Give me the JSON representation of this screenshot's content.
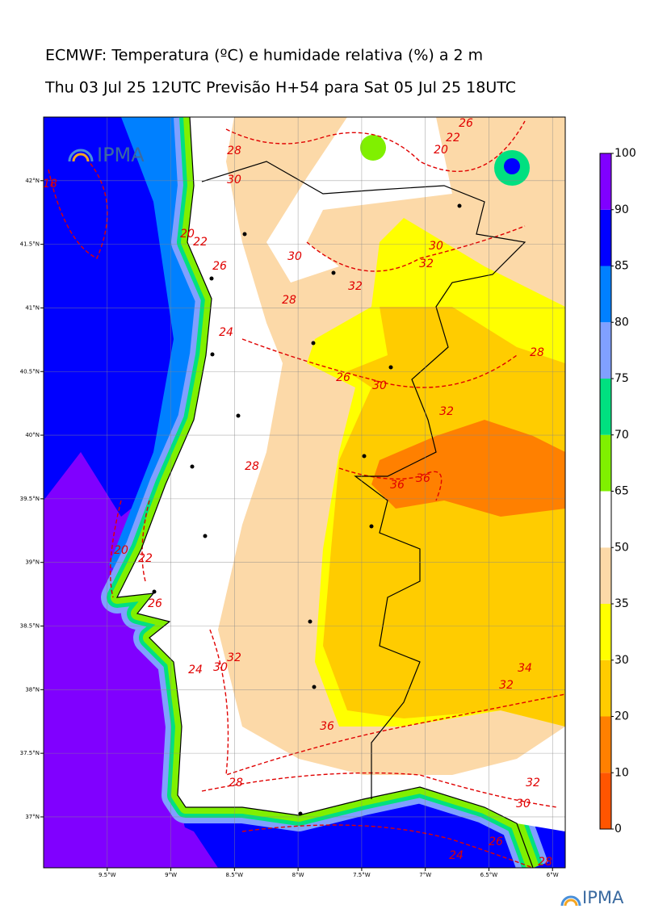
{
  "header": {
    "title": "ECMWF: Temperatura (ºC) e humidade relativa (%) a 2 m",
    "subtitle": "Thu 03 Jul 25 12UTC Previsão H+54 para Sat 05 Jul 25 18UTC"
  },
  "map": {
    "lon_range": [
      -10,
      -5.9
    ],
    "lat_range": [
      36.6,
      42.5
    ],
    "lon_ticks": [
      {
        "value": -9.5,
        "label": "9.5°W"
      },
      {
        "value": -9,
        "label": "9°W"
      },
      {
        "value": -8.5,
        "label": "8.5°W"
      },
      {
        "value": -8,
        "label": "8°W"
      },
      {
        "value": -7.5,
        "label": "7.5°W"
      },
      {
        "value": -7,
        "label": "7°W"
      },
      {
        "value": -6.5,
        "label": "6.5°W"
      },
      {
        "value": -6,
        "label": "6°W"
      }
    ],
    "lat_ticks": [
      {
        "value": 42,
        "label": "42°N"
      },
      {
        "value": 41.5,
        "label": "41.5°N"
      },
      {
        "value": 41,
        "label": "41°N"
      },
      {
        "value": 40.5,
        "label": "40.5°N"
      },
      {
        "value": 40,
        "label": "40°N"
      },
      {
        "value": 39.5,
        "label": "39.5°N"
      },
      {
        "value": 39,
        "label": "39°N"
      },
      {
        "value": 38.5,
        "label": "38.5°N"
      },
      {
        "value": 38,
        "label": "38°N"
      },
      {
        "value": 37.5,
        "label": "37.5°N"
      },
      {
        "value": 37,
        "label": "37°N"
      }
    ],
    "grid": true,
    "contour_labels": [
      18,
      28,
      30,
      20,
      22,
      26,
      30,
      28,
      32,
      30,
      32,
      24,
      26,
      30,
      28,
      32,
      28,
      36,
      36,
      20,
      22,
      26,
      32,
      30,
      24,
      34,
      32,
      36,
      28,
      32,
      30,
      24,
      26,
      28,
      20,
      22,
      26
    ]
  },
  "colorbar": {
    "levels": [
      0,
      10,
      20,
      30,
      35,
      50,
      65,
      70,
      75,
      80,
      85,
      90,
      100
    ],
    "colors": [
      "#ff5500",
      "#ff8000",
      "#ffcc00",
      "#ffff00",
      "#fcd9a8",
      "#ffffff",
      "#80f000",
      "#00e080",
      "#80a0ff",
      "#0080ff",
      "#0000ff",
      "#8000ff"
    ]
  },
  "logos": {
    "map_logo": "IPMA",
    "footer_logo": "IPMA"
  }
}
